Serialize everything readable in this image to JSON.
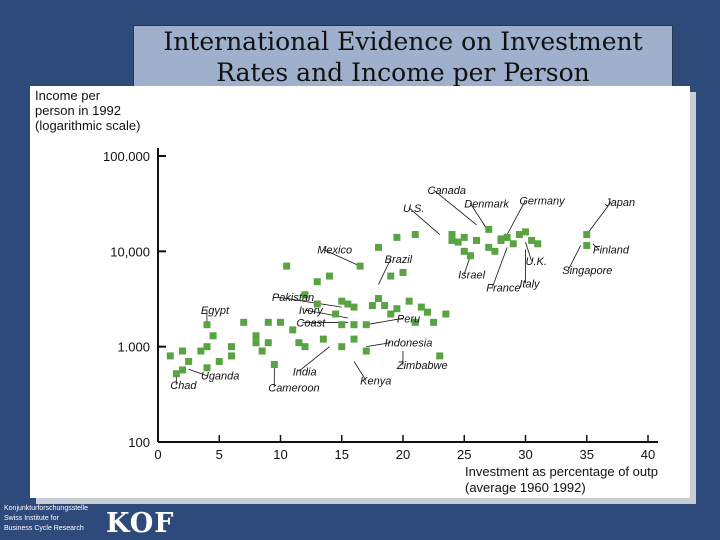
{
  "slide": {
    "title_line1": "International Evidence on Investment",
    "title_line2": "Rates and Income per Person"
  },
  "footer": {
    "line1": "Konjunkturforschungsstelle",
    "line2": "Swiss Institute for",
    "line3": "Business Cycle Research",
    "logo": "KOF"
  },
  "chart_data": {
    "type": "scatter",
    "title": "International Evidence on Investment Rates and Income per Person",
    "ylabel_lines": [
      "Income per",
      "person in 1992",
      "(logarithmic scale)"
    ],
    "xlabel_lines": [
      "Investment as percentage of outp",
      "(average 1960 1992)"
    ],
    "y_scale": "log",
    "ylim": [
      100,
      100000
    ],
    "xlim": [
      0,
      40
    ],
    "x_ticks": [
      0,
      5,
      10,
      15,
      20,
      25,
      30,
      35,
      40
    ],
    "y_ticks": [
      100,
      1000,
      10000,
      100000
    ],
    "y_tick_labels": [
      "100",
      "1.000",
      "10,000",
      "100.000"
    ],
    "grid": false,
    "marker_color": "#5aa342",
    "points": [
      [
        1,
        800
      ],
      [
        1.5,
        520
      ],
      [
        2,
        900
      ],
      [
        2.5,
        700
      ],
      [
        2,
        570
      ],
      [
        4,
        1700
      ],
      [
        4.5,
        1300
      ],
      [
        4,
        1000
      ],
      [
        3.5,
        900
      ],
      [
        4,
        600
      ],
      [
        5,
        700
      ],
      [
        6,
        1000
      ],
      [
        6,
        800
      ],
      [
        7,
        1800
      ],
      [
        8,
        1300
      ],
      [
        8,
        1100
      ],
      [
        8.5,
        900
      ],
      [
        9,
        1800
      ],
      [
        9,
        1100
      ],
      [
        9.5,
        650
      ],
      [
        10,
        1800
      ],
      [
        10.5,
        7000
      ],
      [
        11,
        1500
      ],
      [
        11.5,
        1100
      ],
      [
        12,
        3500
      ],
      [
        12,
        1000
      ],
      [
        13,
        4800
      ],
      [
        13,
        2800
      ],
      [
        13.5,
        1200
      ],
      [
        14,
        5500
      ],
      [
        14.5,
        2200
      ],
      [
        15,
        1700
      ],
      [
        15,
        1000
      ],
      [
        15,
        3000
      ],
      [
        15.5,
        2800
      ],
      [
        16,
        2600
      ],
      [
        16,
        1700
      ],
      [
        16,
        1200
      ],
      [
        16.5,
        7000
      ],
      [
        17,
        1700
      ],
      [
        17,
        900
      ],
      [
        17.5,
        2700
      ],
      [
        18,
        11000
      ],
      [
        18,
        3200
      ],
      [
        18.5,
        2700
      ],
      [
        19,
        2200
      ],
      [
        19,
        5500
      ],
      [
        19.5,
        2500
      ],
      [
        19.5,
        14000
      ],
      [
        20,
        6000
      ],
      [
        20.5,
        3000
      ],
      [
        21,
        15000
      ],
      [
        21,
        1800
      ],
      [
        21.5,
        2600
      ],
      [
        22,
        2300
      ],
      [
        22.5,
        1800
      ],
      [
        23,
        800
      ],
      [
        23.5,
        2200
      ],
      [
        24,
        13000
      ],
      [
        24,
        15000
      ],
      [
        24.5,
        12500
      ],
      [
        25,
        10000
      ],
      [
        25,
        14000
      ],
      [
        25.5,
        9000
      ],
      [
        26,
        13000
      ],
      [
        27,
        11000
      ],
      [
        27,
        17000
      ],
      [
        27.5,
        10000
      ],
      [
        28,
        13000
      ],
      [
        28,
        13500
      ],
      [
        28.5,
        14000
      ],
      [
        29,
        12000
      ],
      [
        29.5,
        15000
      ],
      [
        30,
        16000
      ],
      [
        30.5,
        13000
      ],
      [
        31,
        12000
      ],
      [
        35,
        11500
      ],
      [
        35,
        15000
      ]
    ],
    "annotations": [
      {
        "label": "Canada",
        "at": [
          26,
          19000
        ],
        "text_at": [
          22,
          40000
        ]
      },
      {
        "label": "Denmark",
        "at": [
          27,
          16000
        ],
        "text_at": [
          25,
          29000
        ]
      },
      {
        "label": "U.S.",
        "at": [
          23,
          15000
        ],
        "text_at": [
          20,
          26000
        ]
      },
      {
        "label": "Germany",
        "at": [
          28.5,
          15000
        ],
        "text_at": [
          29.5,
          31000
        ]
      },
      {
        "label": "Japan",
        "at": [
          35,
          15000
        ],
        "text_at": [
          36.5,
          30000
        ]
      },
      {
        "label": "Finland",
        "at": [
          35.5,
          12000
        ],
        "text_at": [
          35.5,
          9500
        ]
      },
      {
        "label": "U.K.",
        "at": [
          30,
          12500
        ],
        "text_at": [
          30,
          7200
        ]
      },
      {
        "label": "Singapore",
        "at": [
          34.5,
          11500
        ],
        "text_at": [
          33,
          5800
        ]
      },
      {
        "label": "Israel",
        "at": [
          25.5,
          9000
        ],
        "text_at": [
          24.5,
          5200
        ]
      },
      {
        "label": "Italy",
        "at": [
          30,
          10500
        ],
        "text_at": [
          29.5,
          4200
        ]
      },
      {
        "label": "France",
        "at": [
          28.5,
          11000
        ],
        "text_at": [
          26.8,
          3800
        ]
      },
      {
        "label": "Mexico",
        "at": [
          16.5,
          7000
        ],
        "text_at": [
          13,
          9500
        ]
      },
      {
        "label": "Brazil",
        "at": [
          18,
          4500
        ],
        "text_at": [
          18.5,
          7500
        ]
      },
      {
        "label": "Pakistan",
        "at": [
          15,
          2600
        ],
        "text_at": [
          9.3,
          3000
        ]
      },
      {
        "label": "Ivory",
        "at": [
          15.5,
          2000
        ],
        "text_at": [
          11.5,
          2200
        ]
      },
      {
        "label": "Coast",
        "at": [
          15.5,
          1800
        ],
        "text_at": [
          11.3,
          1620
        ]
      },
      {
        "label": "Peru",
        "at": [
          17,
          1700
        ],
        "text_at": [
          19.5,
          1800
        ]
      },
      {
        "label": "Egypt",
        "at": [
          4,
          1600
        ],
        "text_at": [
          3.5,
          2200
        ]
      },
      {
        "label": "Indonesia",
        "at": [
          17,
          1000
        ],
        "text_at": [
          18.5,
          1000
        ]
      },
      {
        "label": "India",
        "at": [
          14,
          1000
        ],
        "text_at": [
          11,
          500
        ]
      },
      {
        "label": "Zimbabwe",
        "at": [
          20,
          900
        ],
        "text_at": [
          19.5,
          580
        ]
      },
      {
        "label": "Kenya",
        "at": [
          16,
          700
        ],
        "text_at": [
          16.5,
          400
        ]
      },
      {
        "label": "Uganda",
        "at": [
          2.5,
          580
        ],
        "text_at": [
          3.5,
          450
        ]
      },
      {
        "label": "Chad",
        "at": [
          1.5,
          550
        ],
        "text_at": [
          1,
          360
        ]
      },
      {
        "label": "Cameroon",
        "at": [
          9.5,
          650
        ],
        "text_at": [
          9,
          340
        ]
      }
    ]
  }
}
